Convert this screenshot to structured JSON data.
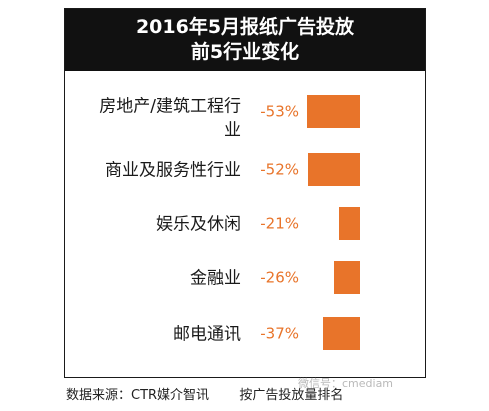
{
  "title": {
    "line1": "2016年5月报纸广告投放",
    "line2": "前5行业变化"
  },
  "chart_data": {
    "type": "bar",
    "orientation": "horizontal",
    "categories": [
      [
        "房地产/建筑工程行",
        "业"
      ],
      [
        "商业及服务性行业"
      ],
      [
        "娱乐及休闲"
      ],
      [
        "金融业"
      ],
      [
        "邮电通讯"
      ]
    ],
    "values": [
      -53,
      -52,
      -21,
      -26,
      -37
    ],
    "value_labels": [
      "-53%",
      "-52%",
      "-21%",
      "-26%",
      "-37%"
    ],
    "unit": "%",
    "bar_color": "#e8742a",
    "grid": false,
    "legend": "none"
  },
  "footer": {
    "source": "数据来源：CTR媒介智讯",
    "note": "按广告投放量排名"
  },
  "watermark": "微信号：cmediam"
}
